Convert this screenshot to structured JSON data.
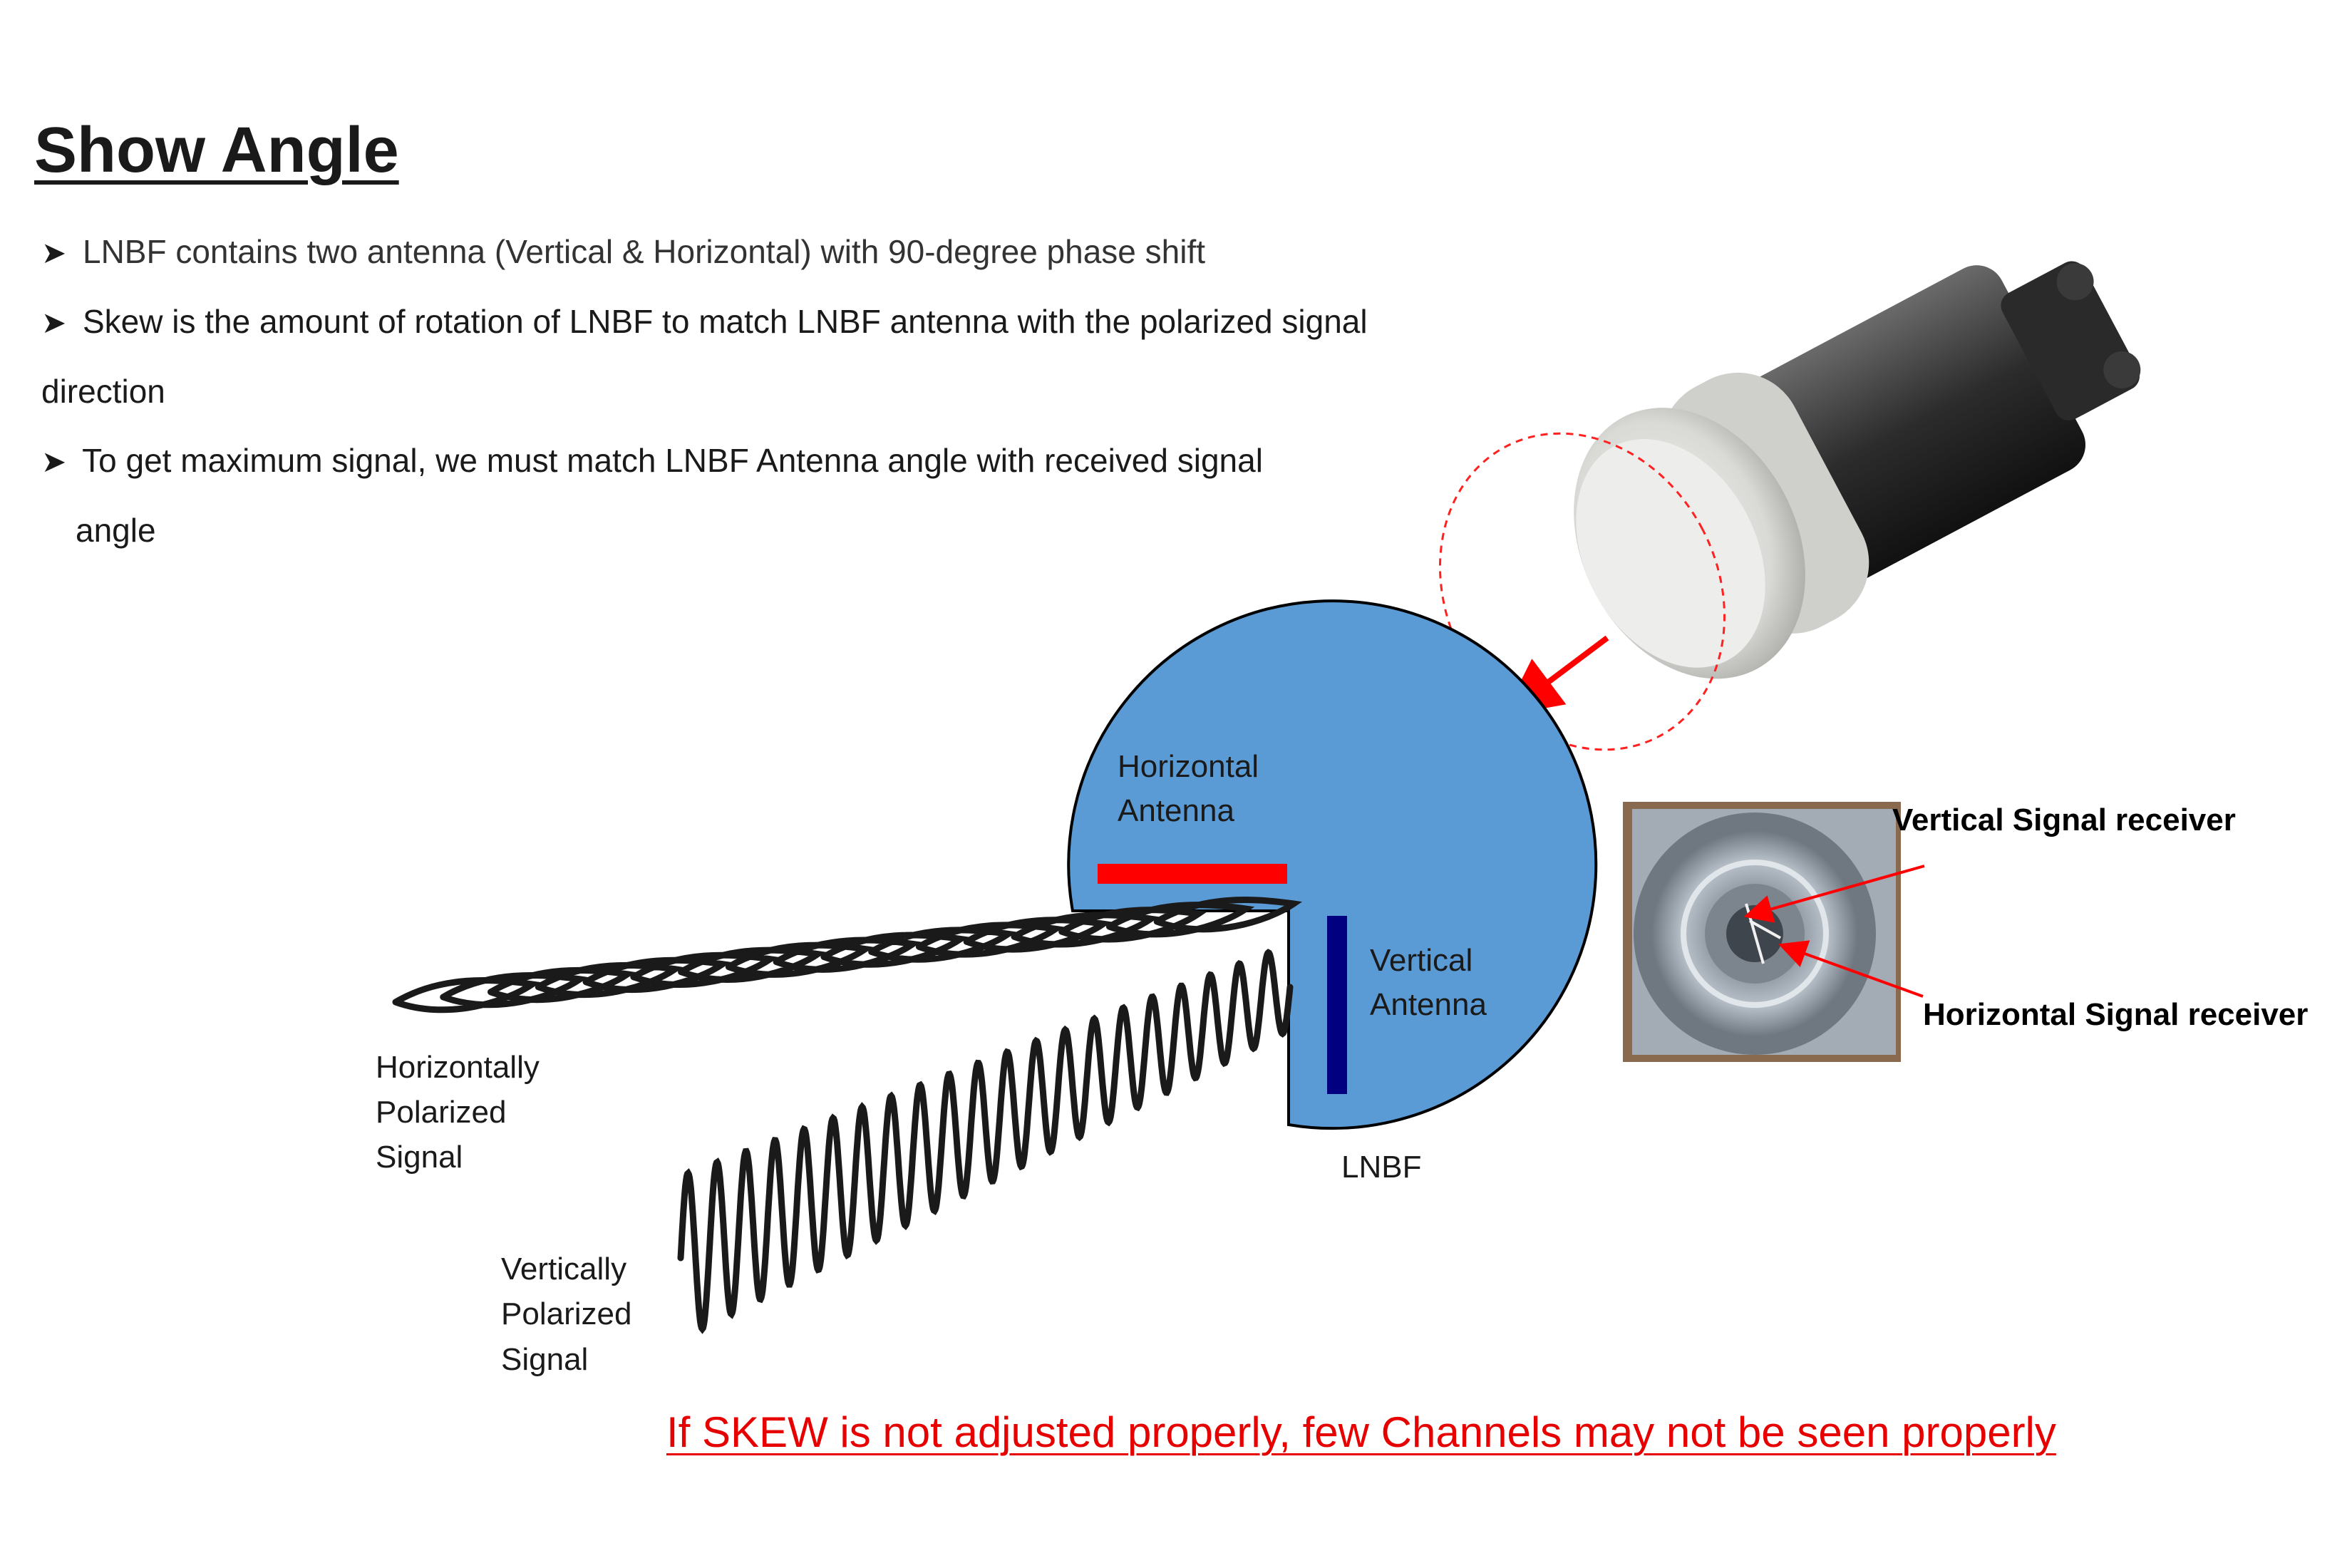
{
  "title": "Show Angle",
  "bullets": [
    "LNBF contains two antenna (Vertical & Horizontal) with 90-degree phase shift",
    "Skew is the amount of rotation of LNBF to match LNBF antenna with the polarized signal",
    "direction",
    "To get maximum signal, we must match LNBF Antenna angle with received signal",
    "angle"
  ],
  "diagram": {
    "horizontal_antenna": [
      "Horizontal",
      "Antenna"
    ],
    "vertical_antenna": [
      "Vertical",
      "Antenna"
    ],
    "lnbf_label": "LNBF",
    "horizontal_signal": [
      "Horizontally",
      "Polarized",
      "Signal"
    ],
    "vertical_signal": [
      "Vertically",
      "Polarized",
      "Signal"
    ],
    "vertical_receiver": "Vertical Signal receiver",
    "horizontal_receiver": "Horizontal Signal receiver"
  },
  "warning": "If SKEW is not adjusted properly, few Channels may not be seen properly",
  "colors": {
    "lnbf_disc": "#5b9bd5",
    "horizontal_antenna": "#ff0000",
    "vertical_antenna": "#000080",
    "warning": "#e60000"
  }
}
